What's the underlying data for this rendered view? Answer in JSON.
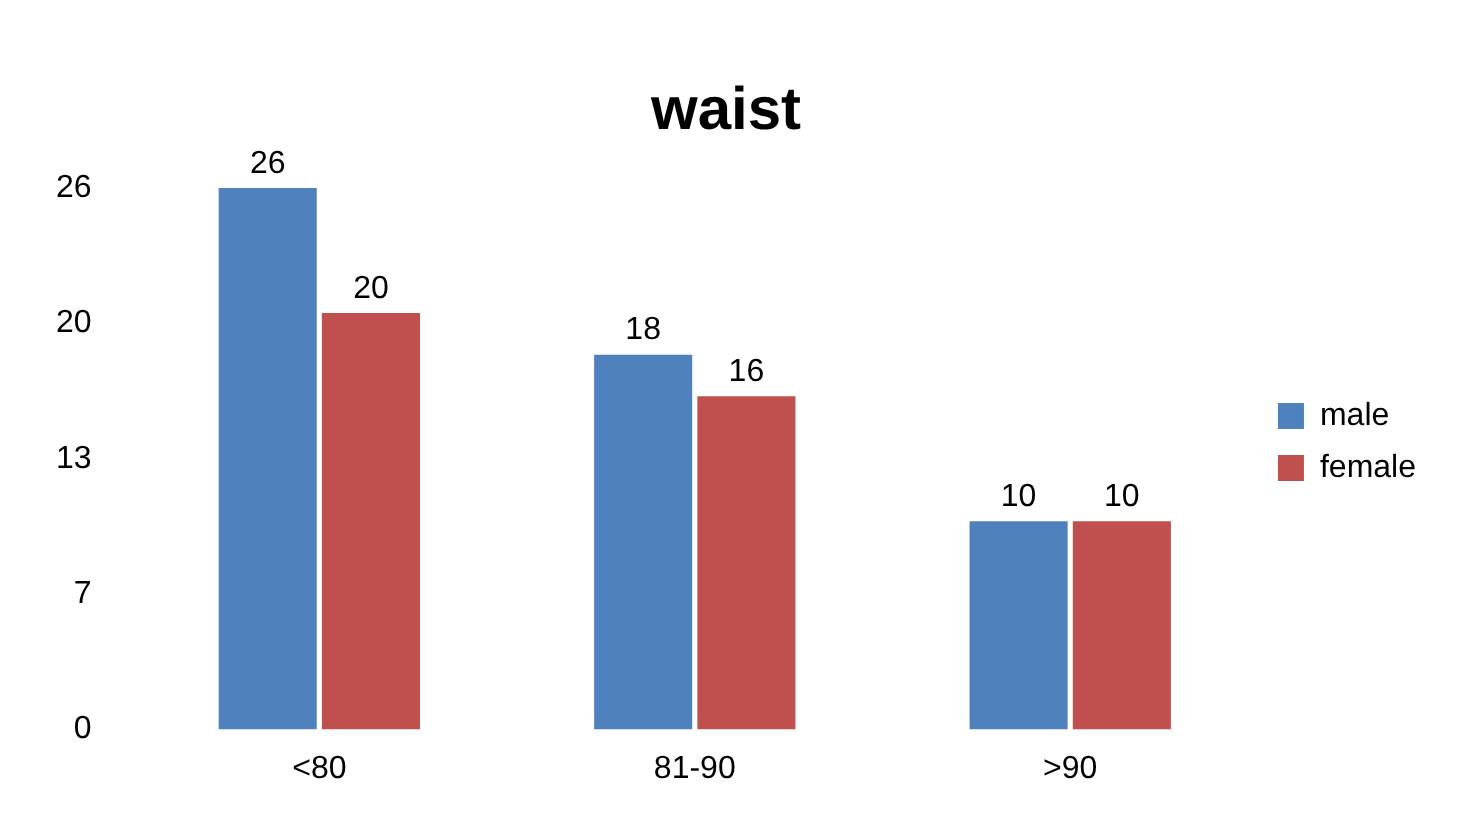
{
  "chart_data": {
    "type": "bar",
    "title": "waist",
    "categories": [
      "<80",
      "81-90",
      ">90"
    ],
    "series": [
      {
        "name": "male",
        "color": "#4f81bd",
        "values": [
          26,
          18,
          10
        ]
      },
      {
        "name": "female",
        "color": "#c0504d",
        "values": [
          20,
          16,
          10
        ]
      }
    ],
    "ylim": [
      0,
      26
    ],
    "yticks": [
      0,
      {
        "value": 6.5,
        "label": "7"
      },
      13,
      {
        "value": 19.5,
        "label": "20"
      },
      26
    ],
    "data_labels": true,
    "legend": "right",
    "grid": false
  }
}
